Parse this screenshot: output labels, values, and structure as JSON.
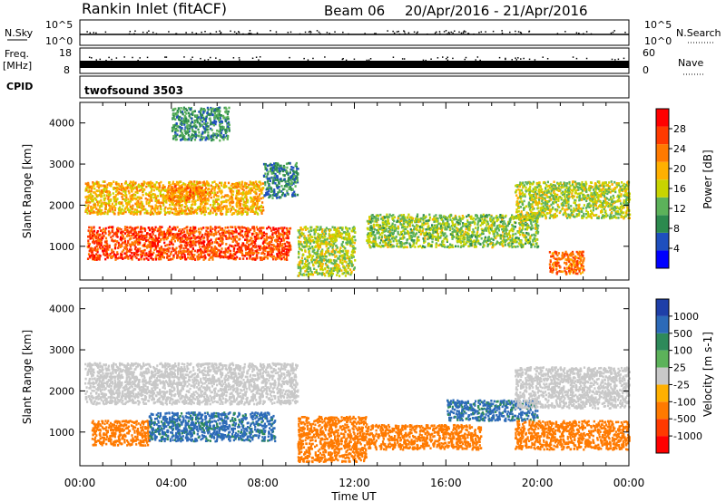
{
  "header": {
    "station": "Rankin Inlet (fitACF)",
    "beam": "Beam 06",
    "dates": "20/Apr/2016 - 21/Apr/2016"
  },
  "status_panels": {
    "nsky_label": "N.Sky",
    "nsky_ticks": [
      "10^5",
      "10^0"
    ],
    "nsky_right_ticks": [
      "10^5",
      "10^0"
    ],
    "nsearch_label": "N.Search",
    "freq_label": "Freq.",
    "freq_unit": "[MHz]",
    "freq_ticks": [
      "18",
      "8"
    ],
    "nave_ticks": [
      "60",
      "0"
    ],
    "nave_label": "Nave",
    "cpid_label": "CPID",
    "cpid_value": "twofsound 3503"
  },
  "chart_data": [
    {
      "type": "heatmap",
      "title": "",
      "xlabel": "",
      "ylabel": "Slant Range [km]",
      "x_range_hours": [
        0,
        24
      ],
      "ylim": [
        180,
        4500
      ],
      "y_ticks": [
        1000,
        2000,
        3000,
        4000
      ],
      "colorbar": {
        "label": "Power [dB]",
        "ticks": [
          "28",
          "24",
          "20",
          "16",
          "12",
          "8",
          "4"
        ],
        "colors": [
          "#0000ff",
          "#1e4fbe",
          "#2c8a4e",
          "#5cb25a",
          "#c8d400",
          "#ffb000",
          "#ff7a00",
          "#ff3a00",
          "#ff0000"
        ]
      },
      "regions": [
        {
          "t": [
            0.2,
            8.0
          ],
          "r": [
            1800,
            2600
          ],
          "value": 18
        },
        {
          "t": [
            0.3,
            9.2
          ],
          "r": [
            700,
            1500
          ],
          "value": 24
        },
        {
          "t": [
            3.8,
            5.5
          ],
          "r": [
            2100,
            2500
          ],
          "value": 21
        },
        {
          "t": [
            9.5,
            12.0
          ],
          "r": [
            300,
            1500
          ],
          "value": 14
        },
        {
          "t": [
            12.5,
            20.0
          ],
          "r": [
            1000,
            1800
          ],
          "value": 13
        },
        {
          "t": [
            19.0,
            24.0
          ],
          "r": [
            1700,
            2600
          ],
          "value": 14
        },
        {
          "t": [
            20.5,
            22.0
          ],
          "r": [
            350,
            900
          ],
          "value": 22
        },
        {
          "t": [
            8.0,
            9.5
          ],
          "r": [
            2200,
            3050
          ],
          "value": 8
        },
        {
          "t": [
            4.0,
            6.5
          ],
          "r": [
            3600,
            4400
          ],
          "value": 9
        }
      ]
    },
    {
      "type": "heatmap",
      "title": "",
      "xlabel": "Time UT",
      "ylabel": "Slant Range [km]",
      "x_range_hours": [
        0,
        24
      ],
      "x_ticks": [
        "00:00",
        "04:00",
        "08:00",
        "12:00",
        "16:00",
        "20:00",
        "00:00"
      ],
      "ylim": [
        180,
        4500
      ],
      "y_ticks": [
        1000,
        2000,
        3000,
        4000
      ],
      "colorbar": {
        "label": "Velocity [m s-1]",
        "ticks": [
          "1000",
          "500",
          "100",
          "25",
          "-25",
          "-100",
          "-500",
          "-1000"
        ],
        "colors": [
          "#1e3fa8",
          "#2c6ab8",
          "#2e8a5a",
          "#5cb25a",
          "#c8c8c8",
          "#ffb000",
          "#ff7a00",
          "#ff3a00",
          "#ff0000"
        ]
      },
      "regions": [
        {
          "t": [
            0.2,
            9.5
          ],
          "r": [
            1700,
            2700
          ],
          "value": 0
        },
        {
          "t": [
            0.5,
            3.0
          ],
          "r": [
            700,
            1300
          ],
          "value": -150
        },
        {
          "t": [
            3.0,
            8.5
          ],
          "r": [
            800,
            1500
          ],
          "value": 120
        },
        {
          "t": [
            9.5,
            12.5
          ],
          "r": [
            300,
            1400
          ],
          "value": -200
        },
        {
          "t": [
            12.5,
            17.5
          ],
          "r": [
            600,
            1200
          ],
          "value": -200
        },
        {
          "t": [
            16.0,
            20.0
          ],
          "r": [
            1300,
            1800
          ],
          "value": 120
        },
        {
          "t": [
            19.0,
            24.0
          ],
          "r": [
            600,
            1300
          ],
          "value": -200
        },
        {
          "t": [
            19.0,
            24.0
          ],
          "r": [
            1600,
            2600
          ],
          "value": 0
        }
      ]
    }
  ]
}
